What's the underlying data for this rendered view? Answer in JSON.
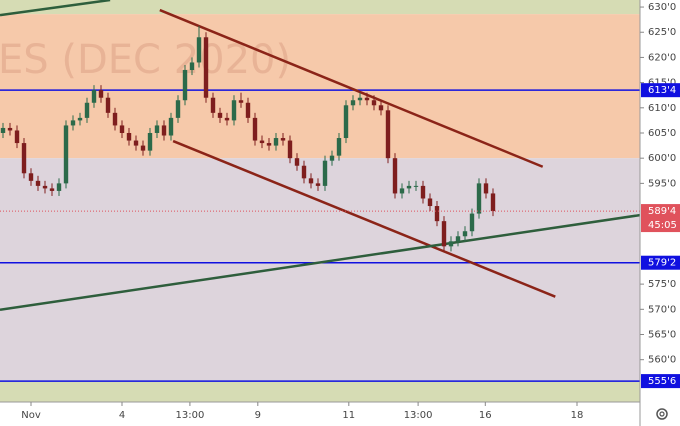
{
  "chart_data": {
    "type": "candlestick",
    "watermark": "ES (DEC 2020)",
    "xlim": [
      -0.43,
      91
    ],
    "ylim": [
      551.6,
      631.4
    ],
    "xticks": [
      {
        "value": 4,
        "label": "Nov"
      },
      {
        "value": 17,
        "label": "4"
      },
      {
        "value": 26.7,
        "label": "13:00"
      },
      {
        "value": 36.4,
        "label": "9"
      },
      {
        "value": 49.4,
        "label": "11"
      },
      {
        "value": 59.3,
        "label": "13:00"
      },
      {
        "value": 68.9,
        "label": "16"
      },
      {
        "value": 82,
        "label": "18"
      }
    ],
    "yticks": [
      {
        "value": 630,
        "label": "630'0"
      },
      {
        "value": 625,
        "label": "625'0"
      },
      {
        "value": 620,
        "label": "620'0"
      },
      {
        "value": 615,
        "label": "615'0"
      },
      {
        "value": 610,
        "label": "610'0"
      },
      {
        "value": 605,
        "label": "605'0"
      },
      {
        "value": 600,
        "label": "600'0"
      },
      {
        "value": 595,
        "label": "595'0"
      },
      {
        "value": 575,
        "label": "575'0"
      },
      {
        "value": 570,
        "label": "570'0"
      },
      {
        "value": 565,
        "label": "565'0"
      },
      {
        "value": 560,
        "label": "560'0"
      }
    ],
    "zones": [
      {
        "from": 628.6,
        "to": 631.4,
        "color": "#d6dcb4"
      },
      {
        "from": 600,
        "to": 628.6,
        "color": "#f6c9aa"
      },
      {
        "from": 555.75,
        "to": 600,
        "color": "#ddd4dc"
      },
      {
        "from": 551.6,
        "to": 555.75,
        "color": "#d6dcb4"
      }
    ],
    "price_lines": [
      {
        "value": 613.5,
        "label": "613'4",
        "color": "#1010e0"
      },
      {
        "value": 579.25,
        "label": "579'2",
        "color": "#1010e0"
      },
      {
        "value": 555.75,
        "label": "555'6",
        "color": "#1010e0"
      }
    ],
    "current_price": {
      "value": 589.5,
      "label": "589'4",
      "countdown": "45:05",
      "color": "#e0525c"
    },
    "trendlines": [
      {
        "color": "#8b2418",
        "points": [
          [
            22.4,
            629.4
          ],
          [
            77.1,
            598.3
          ]
        ]
      },
      {
        "color": "#8b2418",
        "points": [
          [
            24.3,
            603.4
          ],
          [
            78.9,
            572.5
          ]
        ]
      },
      {
        "color": "#2e5e3c",
        "points": [
          [
            -0.43,
            569.9
          ],
          [
            91,
            588.7
          ]
        ]
      },
      {
        "color": "#2e5e3c",
        "points": [
          [
            -0.43,
            628.4
          ],
          [
            15.3,
            631.4
          ]
        ]
      }
    ],
    "up_color": "#2c6a4a",
    "down_color": "#7e1e1e",
    "open": [
      605,
      606,
      605.5,
      603,
      597,
      595.5,
      594.5,
      594,
      593.5,
      595,
      606.5,
      607.5,
      608,
      611,
      613.5,
      612,
      609,
      606.5,
      605,
      603.5,
      602.5,
      601.5,
      605,
      606.5,
      604.5,
      608,
      611.5,
      617.5,
      619,
      624,
      612,
      609,
      608,
      607.5,
      611.5,
      611,
      608,
      603.5,
      603,
      602.5,
      604,
      603.5,
      600,
      598.5,
      596,
      595,
      594.5,
      599.5,
      600.5,
      604,
      610.5,
      611.5,
      612,
      611.5,
      610.5,
      609.5,
      600,
      593,
      594,
      594.5,
      594.5,
      592,
      590.5,
      587.5,
      582.5,
      583.5,
      584.5,
      585.5,
      589,
      595,
      593
    ],
    "high": [
      607,
      607,
      606.5,
      604,
      598,
      596.5,
      595.5,
      595,
      596,
      607.5,
      608.5,
      609,
      612,
      614.5,
      614.5,
      613,
      610,
      607.5,
      606,
      604.5,
      603.5,
      606,
      607.5,
      607.5,
      609,
      612.5,
      618.5,
      620,
      626.25,
      625,
      613,
      610,
      609,
      612.5,
      613,
      612,
      609,
      604.5,
      604,
      605,
      605,
      604.5,
      601,
      599.5,
      597,
      596,
      600.5,
      601.5,
      605,
      611.5,
      612.5,
      613,
      613,
      612.5,
      611.5,
      610.5,
      601,
      595,
      595.5,
      595.5,
      595.5,
      593,
      591.5,
      588.5,
      584.5,
      585.5,
      586.5,
      590,
      596,
      596,
      594
    ],
    "low": [
      604,
      604.5,
      602,
      596,
      594.5,
      593.5,
      593,
      592.5,
      592.5,
      594,
      605.5,
      606.5,
      607,
      610,
      611,
      608,
      605.5,
      604,
      602.5,
      601.5,
      600.5,
      600.5,
      604,
      603.5,
      603.5,
      607,
      610.5,
      616.5,
      618,
      611,
      608,
      607,
      606.5,
      606.5,
      610,
      607,
      602.5,
      602,
      601.5,
      601.5,
      602.5,
      599,
      597.5,
      595,
      594,
      593.5,
      593.5,
      598.5,
      599.5,
      603,
      609.5,
      610.5,
      610.5,
      609.5,
      608.5,
      599,
      592,
      592,
      593,
      593.5,
      591,
      589.5,
      586.5,
      581.5,
      581.5,
      582.5,
      583.5,
      584.5,
      588,
      592,
      588.5
    ],
    "close": [
      606,
      605.5,
      603,
      597,
      595.5,
      594.5,
      594,
      593.5,
      595,
      606.5,
      607.5,
      608,
      611,
      613.5,
      612,
      609,
      606.5,
      605,
      603.5,
      602.5,
      601.5,
      605,
      606.5,
      604.5,
      608,
      611.5,
      617.5,
      619,
      624,
      612,
      609,
      608,
      607.5,
      611.5,
      611,
      608,
      603.5,
      603,
      602.5,
      604,
      603.5,
      600,
      598.5,
      596,
      595,
      594.5,
      599.5,
      600.5,
      604,
      610.5,
      611.5,
      612,
      611.5,
      610.5,
      609.5,
      600,
      593,
      594,
      594.5,
      594.5,
      592,
      590.5,
      587.5,
      582.5,
      583.5,
      584.5,
      585.5,
      589,
      595,
      593,
      589.5
    ]
  }
}
